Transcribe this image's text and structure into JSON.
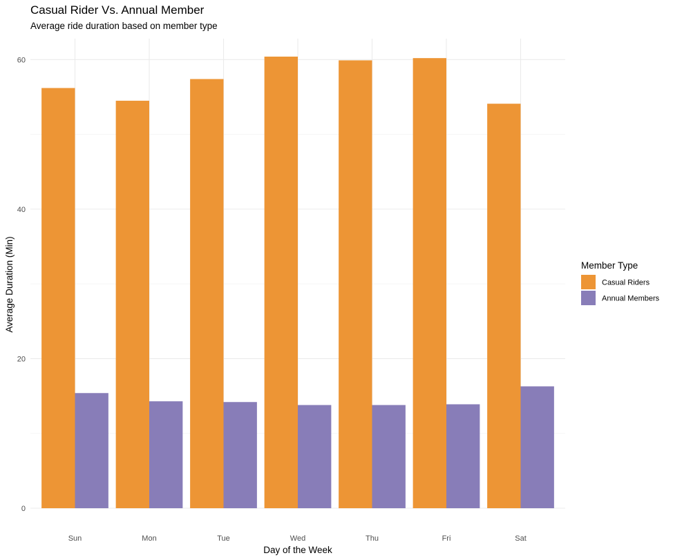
{
  "chart_data": {
    "type": "bar",
    "title": "Casual Rider Vs. Annual Member",
    "subtitle": "Average ride duration based on member type",
    "xlabel": "Day of the Week",
    "ylabel": "Average Duration (Min)",
    "categories": [
      "Sun",
      "Mon",
      "Tue",
      "Wed",
      "Thu",
      "Fri",
      "Sat"
    ],
    "series": [
      {
        "name": "Casual Riders",
        "color": "#ED9535",
        "values": [
          56.2,
          54.5,
          57.4,
          60.4,
          59.9,
          60.2,
          54.1
        ]
      },
      {
        "name": "Annual Members",
        "color": "#887DB8",
        "values": [
          15.4,
          14.3,
          14.2,
          13.8,
          13.8,
          13.9,
          16.3
        ]
      }
    ],
    "ylim": [
      0,
      62.8
    ],
    "yticks": [
      0,
      20,
      40,
      60
    ],
    "ytick_labels": [
      "0",
      "20",
      "40",
      "60"
    ],
    "grid": true,
    "legend": {
      "title": "Member Type",
      "position": "right"
    }
  }
}
